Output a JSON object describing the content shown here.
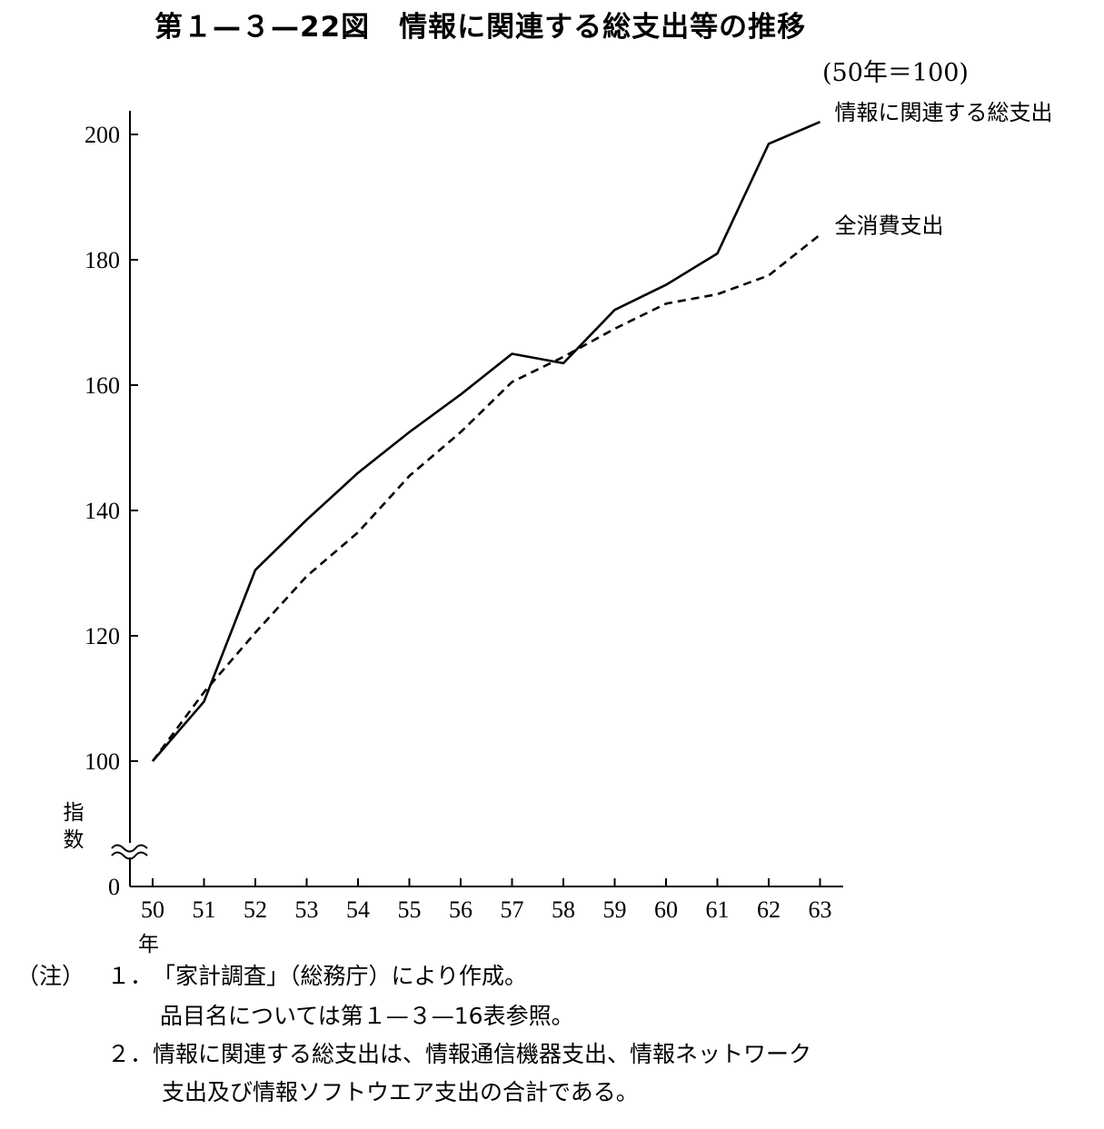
{
  "title": "第１—３—22図　情報に関連する総支出等の推移",
  "base_note": "(50年＝100)",
  "chart_data": {
    "type": "line",
    "title": "第１—３—22図　情報に関連する総支出等の推移",
    "ylabel": "指数",
    "xlabel": "年",
    "x": [
      "50",
      "51",
      "52",
      "53",
      "54",
      "55",
      "56",
      "57",
      "58",
      "59",
      "60",
      "61",
      "62",
      "63"
    ],
    "y_ticks": [
      "0",
      "100",
      "120",
      "140",
      "160",
      "180",
      "200"
    ],
    "ylim": [
      100,
      200
    ],
    "axis_break": true,
    "grid": false,
    "series": [
      {
        "name": "情報に関連する総支出",
        "style": "solid",
        "color": "#000000",
        "values": [
          100,
          109.5,
          130.5,
          138.5,
          146,
          152.5,
          158.5,
          165,
          163.5,
          172,
          176,
          181,
          198.5,
          202
        ]
      },
      {
        "name": "全消費支出",
        "style": "dashed",
        "color": "#000000",
        "values": [
          100,
          111,
          120.5,
          129.5,
          136.5,
          145.5,
          152.5,
          160.5,
          164.5,
          169,
          173,
          174.5,
          177.5,
          184
        ]
      }
    ]
  },
  "notes": {
    "label": "（注）",
    "items": [
      {
        "num": "１．",
        "lines": [
          "「家計調査」（総務庁）により作成。",
          "品目名については第１—３—16表参照。"
        ]
      },
      {
        "num": "２．",
        "lines": [
          "情報に関連する総支出は、情報通信機器支出、情報ネットワーク",
          "支出及び情報ソフトウエア支出の合計である。"
        ]
      }
    ]
  }
}
